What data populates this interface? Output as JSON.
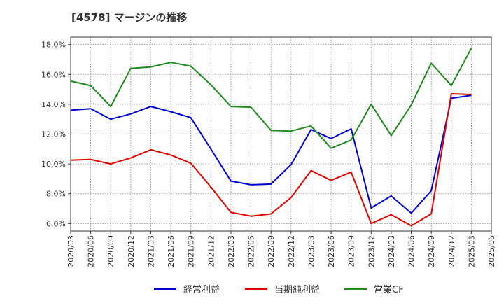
{
  "chart_data": {
    "type": "line",
    "title": "[4578]  マージンの推移",
    "xlabel": "",
    "ylabel": "",
    "ylim": [
      5.5,
      18.5
    ],
    "yticks": [
      6,
      8,
      10,
      12,
      14,
      16,
      18
    ],
    "ytick_labels": [
      "6.0%",
      "8.0%",
      "10.0%",
      "12.0%",
      "14.0%",
      "16.0%",
      "18.0%"
    ],
    "grid": true,
    "legend_position": "bottom",
    "categories": [
      "2020/03",
      "2020/06",
      "2020/09",
      "2020/12",
      "2021/03",
      "2021/06",
      "2021/09",
      "2021/12",
      "2022/03",
      "2022/06",
      "2022/09",
      "2022/12",
      "2023/03",
      "2023/06",
      "2023/09",
      "2023/12",
      "2024/03",
      "2024/06",
      "2024/09",
      "2024/12",
      "2025/03",
      "2025/06"
    ],
    "series": [
      {
        "name": "経常利益",
        "color": "#0000cc",
        "values": [
          13.6,
          13.7,
          13.0,
          13.35,
          13.85,
          13.5,
          13.1,
          11.0,
          8.85,
          8.6,
          8.65,
          9.95,
          12.3,
          11.7,
          12.35,
          7.05,
          7.85,
          6.7,
          8.2,
          14.4,
          14.6,
          null
        ]
      },
      {
        "name": "当期純利益",
        "color": "#dd0000",
        "values": [
          10.25,
          10.3,
          10.0,
          10.4,
          10.95,
          10.6,
          10.05,
          8.45,
          6.75,
          6.5,
          6.65,
          7.75,
          9.55,
          8.9,
          9.45,
          6.0,
          6.6,
          5.85,
          6.65,
          14.7,
          14.65,
          null
        ]
      },
      {
        "name": "営業CF",
        "color": "#228822",
        "values": [
          15.55,
          15.25,
          13.85,
          16.4,
          16.5,
          16.8,
          16.55,
          15.3,
          13.85,
          13.8,
          12.25,
          12.2,
          12.55,
          11.05,
          11.6,
          14.0,
          11.9,
          13.95,
          16.75,
          15.25,
          17.75,
          null
        ]
      }
    ]
  }
}
